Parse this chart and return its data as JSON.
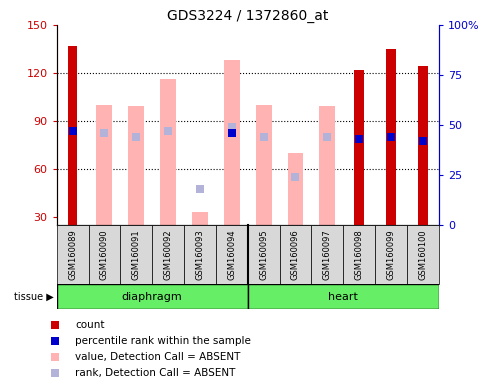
{
  "title": "GDS3224 / 1372860_at",
  "samples": [
    "GSM160089",
    "GSM160090",
    "GSM160091",
    "GSM160092",
    "GSM160093",
    "GSM160094",
    "GSM160095",
    "GSM160096",
    "GSM160097",
    "GSM160098",
    "GSM160099",
    "GSM160100"
  ],
  "ylim_left": [
    25,
    150
  ],
  "ylim_right": [
    0,
    100
  ],
  "yticks_left": [
    30,
    60,
    90,
    120,
    150
  ],
  "yticks_right": [
    0,
    25,
    50,
    75,
    100
  ],
  "ytick_labels_right": [
    "0",
    "25",
    "50",
    "75",
    "100%"
  ],
  "grid_lines": [
    60,
    90,
    120
  ],
  "red_bars": {
    "GSM160089": 137,
    "GSM160098": 122,
    "GSM160099": 135,
    "GSM160100": 124
  },
  "blue_dots_pct": {
    "GSM160089": 47,
    "GSM160094": 46,
    "GSM160098": 43,
    "GSM160099": 44,
    "GSM160100": 42
  },
  "pink_bars": {
    "GSM160090": 100,
    "GSM160091": 99,
    "GSM160092": 116,
    "GSM160093": 33,
    "GSM160094": 128,
    "GSM160095": 100,
    "GSM160096": 70,
    "GSM160097": 99
  },
  "lavender_dots_pct": {
    "GSM160090": 46,
    "GSM160091": 44,
    "GSM160092": 47,
    "GSM160093": 18,
    "GSM160094": 49,
    "GSM160095": 44,
    "GSM160096": 24,
    "GSM160097": 44
  },
  "diaphragm_count": 6,
  "heart_count": 6,
  "colors": {
    "red": "#cc0000",
    "blue": "#0000cc",
    "pink": "#ffb3b3",
    "lavender": "#b3b3d9",
    "tissue_green": "#66ee66",
    "axis_left": "#cc0000",
    "axis_right": "#0000cc",
    "bg_tick": "#d8d8d8"
  },
  "red_bar_width": 0.3,
  "pink_bar_width": 0.5,
  "dot_size": 35,
  "legend_items": [
    {
      "color": "#cc0000",
      "label": "count"
    },
    {
      "color": "#0000cc",
      "label": "percentile rank within the sample"
    },
    {
      "color": "#ffb3b3",
      "label": "value, Detection Call = ABSENT"
    },
    {
      "color": "#b3b3d9",
      "label": "rank, Detection Call = ABSENT"
    }
  ]
}
